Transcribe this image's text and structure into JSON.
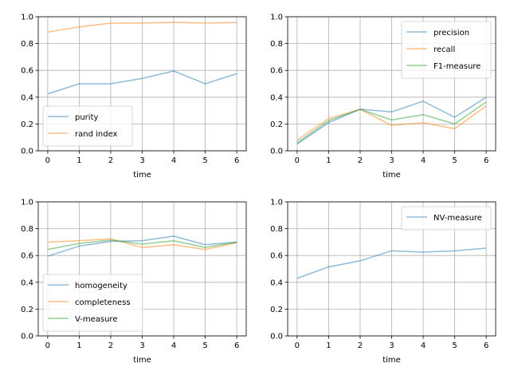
{
  "chart_data": [
    {
      "type": "line",
      "xlabel": "time",
      "ylabel": "",
      "xlim": [
        -0.3,
        6.3
      ],
      "ylim": [
        0,
        1
      ],
      "xticks": [
        "0",
        "1",
        "2",
        "3",
        "4",
        "5",
        "6"
      ],
      "yticks": [
        "0.0",
        "0.2",
        "0.4",
        "0.6",
        "0.8",
        "1.0"
      ],
      "grid": true,
      "legend_position": "lower-left",
      "x": [
        0,
        1,
        2,
        3,
        4,
        5,
        6
      ],
      "series": [
        {
          "name": "purity",
          "color": "#1f77b4",
          "values": [
            0.425,
            0.5,
            0.5,
            0.54,
            0.595,
            0.5,
            0.575
          ]
        },
        {
          "name": "rand index",
          "color": "#ff7f0e",
          "values": [
            0.885,
            0.925,
            0.952,
            0.953,
            0.958,
            0.953,
            0.957
          ]
        }
      ]
    },
    {
      "type": "line",
      "xlabel": "time",
      "ylabel": "",
      "xlim": [
        -0.3,
        6.3
      ],
      "ylim": [
        0,
        1
      ],
      "xticks": [
        "0",
        "1",
        "2",
        "3",
        "4",
        "5",
        "6"
      ],
      "yticks": [
        "0.0",
        "0.2",
        "0.4",
        "0.6",
        "0.8",
        "1.0"
      ],
      "grid": true,
      "legend_position": "upper-right",
      "x": [
        0,
        1,
        2,
        3,
        4,
        5,
        6
      ],
      "series": [
        {
          "name": "precision",
          "color": "#1f77b4",
          "values": [
            0.05,
            0.21,
            0.31,
            0.29,
            0.37,
            0.25,
            0.4
          ]
        },
        {
          "name": "recall",
          "color": "#ff7f0e",
          "values": [
            0.08,
            0.24,
            0.31,
            0.19,
            0.21,
            0.165,
            0.335
          ]
        },
        {
          "name": "F1-measure",
          "color": "#2ca02c",
          "values": [
            0.06,
            0.225,
            0.31,
            0.23,
            0.27,
            0.2,
            0.365
          ]
        }
      ]
    },
    {
      "type": "line",
      "xlabel": "time",
      "ylabel": "",
      "xlim": [
        -0.3,
        6.3
      ],
      "ylim": [
        0,
        1
      ],
      "xticks": [
        "0",
        "1",
        "2",
        "3",
        "4",
        "5",
        "6"
      ],
      "yticks": [
        "0.0",
        "0.2",
        "0.4",
        "0.6",
        "0.8",
        "1.0"
      ],
      "grid": true,
      "legend_position": "lower-left",
      "x": [
        0,
        1,
        2,
        3,
        4,
        5,
        6
      ],
      "series": [
        {
          "name": "homogeneity",
          "color": "#1f77b4",
          "values": [
            0.595,
            0.67,
            0.705,
            0.71,
            0.745,
            0.68,
            0.7
          ]
        },
        {
          "name": "completeness",
          "color": "#ff7f0e",
          "values": [
            0.7,
            0.71,
            0.725,
            0.66,
            0.68,
            0.645,
            0.695
          ]
        },
        {
          "name": "V-measure",
          "color": "#2ca02c",
          "values": [
            0.645,
            0.69,
            0.715,
            0.685,
            0.71,
            0.66,
            0.7
          ]
        }
      ]
    },
    {
      "type": "line",
      "xlabel": "time",
      "ylabel": "",
      "xlim": [
        -0.3,
        6.3
      ],
      "ylim": [
        0,
        1
      ],
      "xticks": [
        "0",
        "1",
        "2",
        "3",
        "4",
        "5",
        "6"
      ],
      "yticks": [
        "0.0",
        "0.2",
        "0.4",
        "0.6",
        "0.8",
        "1.0"
      ],
      "grid": true,
      "legend_position": "upper-right",
      "x": [
        0,
        1,
        2,
        3,
        4,
        5,
        6
      ],
      "series": [
        {
          "name": "NV-measure",
          "color": "#1f77b4",
          "values": [
            0.43,
            0.515,
            0.56,
            0.635,
            0.625,
            0.635,
            0.655
          ]
        }
      ]
    }
  ]
}
